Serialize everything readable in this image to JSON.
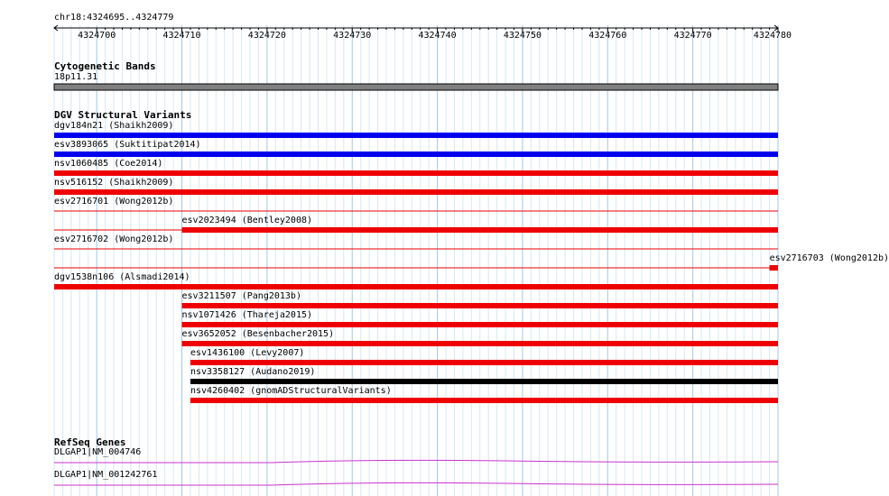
{
  "browser": {
    "region": "chr18:4324695..4324779",
    "ruler_ticks": [
      "4324700",
      "4324710",
      "4324720",
      "4324730",
      "4324740",
      "4324750",
      "4324760",
      "4324770",
      "4324780"
    ]
  },
  "tracks": {
    "cytoband": {
      "title": "Cytogenetic Bands",
      "band_label": "18p11.31",
      "color": "#808080"
    },
    "dgv": {
      "title": "DGV Structural Variants",
      "variants": [
        {
          "label": "dgv184n21 (Shaikh2009)",
          "color": "#0000ee",
          "start": 4324695,
          "end": 4324780
        },
        {
          "label": "esv3893065 (Suktitipat2014)",
          "color": "#0000ee",
          "start": 4324695,
          "end": 4324780
        },
        {
          "label": "nsv1060485 (Coe2014)",
          "color": "#ee0000",
          "start": 4324695,
          "end": 4324780
        },
        {
          "label": "nsv516152 (Shaikh2009)",
          "color": "#ee0000",
          "start": 4324695,
          "end": 4324780
        },
        {
          "label": "esv2716701 (Wong2012b)",
          "color": "#ee0000",
          "start": 4324695,
          "end": 4324780,
          "thin": true
        },
        {
          "label": "esv2023494 (Bentley2008)",
          "color": "#ee0000",
          "start": 4324710,
          "end": 4324780,
          "thin_lead": true
        },
        {
          "label": "esv2716702 (Wong2012b)",
          "color": "#ee0000",
          "start": 4324695,
          "end": 4324780,
          "thin": true
        },
        {
          "label": "esv2716703 (Wong2012b)",
          "color": "#ee0000",
          "start": 4324779,
          "end": 4324780,
          "thin_lead": true
        },
        {
          "label": "dgv1538n106 (Alsmadi2014)",
          "color": "#ee0000",
          "start": 4324695,
          "end": 4324780
        },
        {
          "label": "esv3211507 (Pang2013b)",
          "color": "#ee0000",
          "start": 4324710,
          "end": 4324780
        },
        {
          "label": "nsv1071426 (Thareja2015)",
          "color": "#ee0000",
          "start": 4324710,
          "end": 4324780
        },
        {
          "label": "esv3652052 (Besenbacher2015)",
          "color": "#ee0000",
          "start": 4324710,
          "end": 4324780
        },
        {
          "label": "esv1436100 (Levy2007)",
          "color": "#ee0000",
          "start": 4324711,
          "end": 4324780
        },
        {
          "label": "nsv3358127 (Audano2019)",
          "color": "#000000",
          "start": 4324711,
          "end": 4324780
        },
        {
          "label": "nsv4260402 (gnomADStructuralVariants)",
          "color": "#ee0000",
          "start": 4324711,
          "end": 4324780
        }
      ]
    },
    "refseq": {
      "title": "RefSeq Genes",
      "genes": [
        {
          "label": "DLGAP1|NM_004746",
          "color": "#cc33cc"
        },
        {
          "label": "DLGAP1|NM_001242761",
          "color": "#cc33cc"
        }
      ]
    }
  }
}
